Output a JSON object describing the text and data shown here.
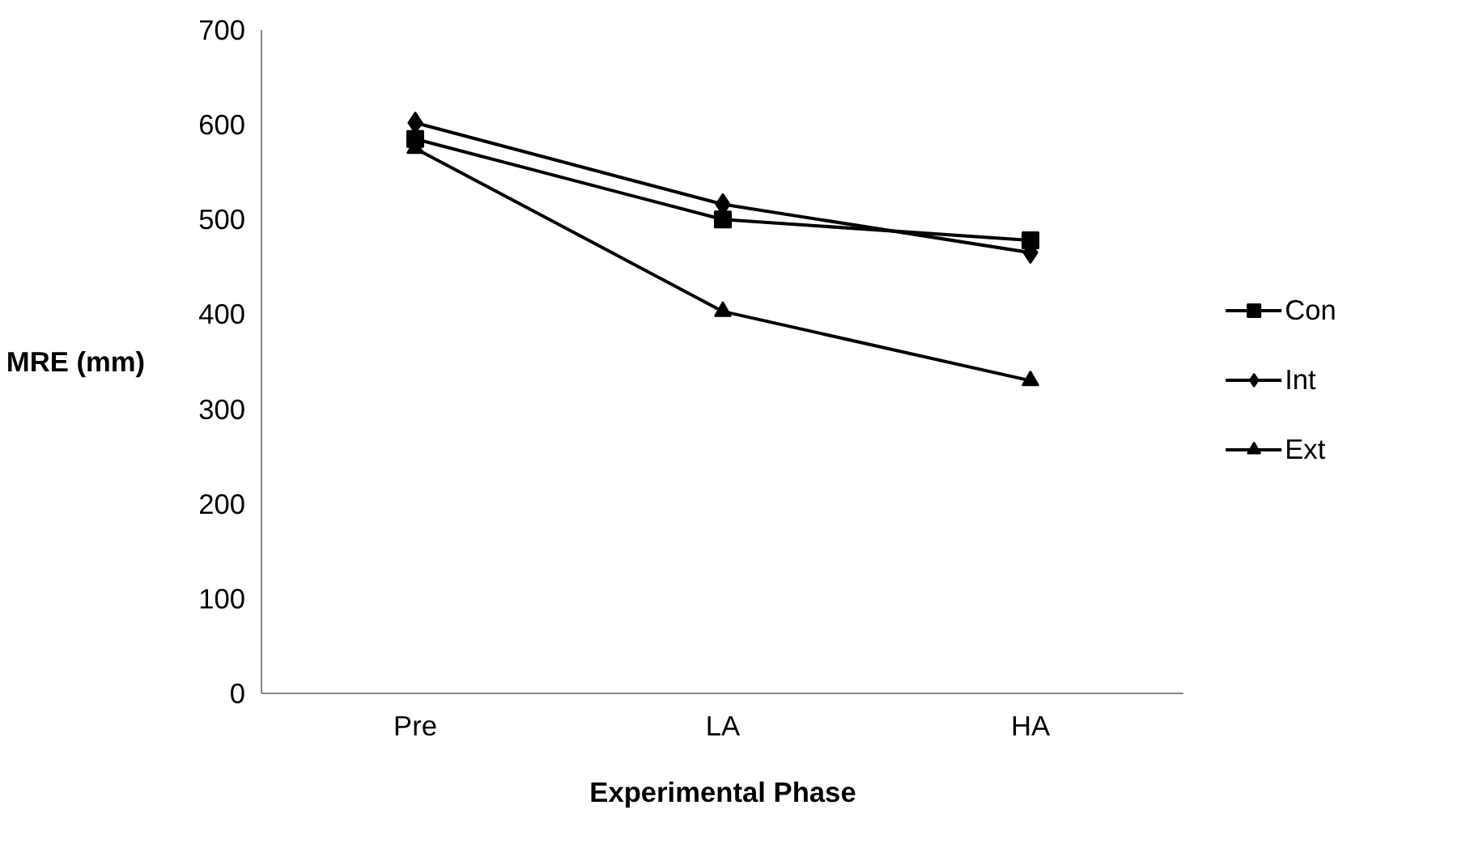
{
  "chart_data": {
    "type": "line",
    "xlabel": "Experimental Phase",
    "ylabel": "MRE (mm)",
    "categories": [
      "Pre",
      "LA",
      "HA"
    ],
    "series": [
      {
        "name": "Con",
        "color": "#000000",
        "marker": "square",
        "values": [
          585,
          500,
          478
        ]
      },
      {
        "name": "Int",
        "color": "#000000",
        "marker": "diamond",
        "values": [
          602,
          516,
          465
        ]
      },
      {
        "name": "Ext",
        "color": "#000000",
        "marker": "triangle",
        "values": [
          575,
          403,
          330
        ]
      }
    ],
    "ylim": [
      0,
      700
    ],
    "yticks": [
      0,
      100,
      200,
      300,
      400,
      500,
      600,
      700
    ],
    "grid": false,
    "legend": "right",
    "line_style": "solid"
  }
}
